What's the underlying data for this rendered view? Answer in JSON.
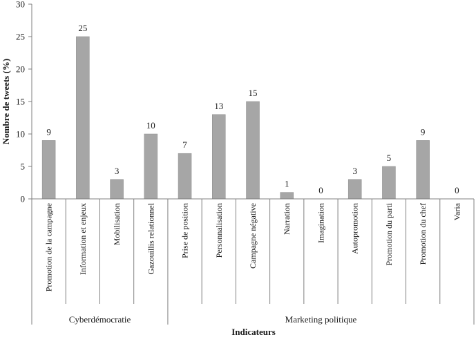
{
  "chart_data": {
    "type": "bar",
    "ylabel": "Nombre de tweets (%)",
    "xlabel": "Indicateurs",
    "ylim": [
      0,
      30
    ],
    "yticks": [
      0,
      5,
      10,
      15,
      20,
      25,
      30
    ],
    "grid": false,
    "legend": "none",
    "bar_color": "#a6a6a6",
    "categories": [
      "Promotion de la campagne",
      "Information et enjeux",
      "Mobilisation",
      "Gazouillis relationnel",
      "Prise de position",
      "Personnalisation",
      "Campagne négative",
      "Narration",
      "Imagination",
      "Autopromotion",
      "Promotion du parti",
      "Promotion du chef",
      "Varia"
    ],
    "values": [
      9,
      25,
      3,
      10,
      7,
      13,
      15,
      1,
      0,
      3,
      5,
      9,
      0
    ],
    "groups": [
      {
        "name": "Cyberdémocratie",
        "categories": [
          "Promotion de la campagne",
          "Information et enjeux",
          "Mobilisation",
          "Gazouillis relationnel"
        ]
      },
      {
        "name": "Marketing politique",
        "categories": [
          "Prise de position",
          "Personnalisation",
          "Campagne négative",
          "Narration",
          "Imagination",
          "Autopromotion",
          "Promotion du parti",
          "Promotion du chef",
          "Varia"
        ]
      }
    ]
  }
}
